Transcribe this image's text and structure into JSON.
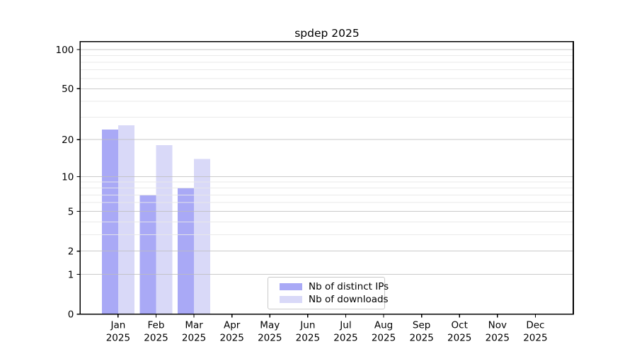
{
  "title": "spdep 2025",
  "chart_data": {
    "type": "bar",
    "title": "spdep 2025",
    "categories": [
      "Jan 2025",
      "Feb 2025",
      "Mar 2025",
      "Apr 2025",
      "May 2025",
      "Jun 2025",
      "Jul 2025",
      "Aug 2025",
      "Sep 2025",
      "Oct 2025",
      "Nov 2025",
      "Dec 2025"
    ],
    "series": [
      {
        "name": "Nb of distinct IPs",
        "color": "#a9a9f6",
        "values": [
          24,
          7,
          8,
          0,
          0,
          0,
          0,
          0,
          0,
          0,
          0,
          0
        ]
      },
      {
        "name": "Nb of downloads",
        "color": "#d9d9f8",
        "values": [
          26,
          18,
          14,
          0,
          0,
          0,
          0,
          0,
          0,
          0,
          0,
          0
        ]
      }
    ],
    "yscale": "log1p",
    "ylim": [
      0,
      115
    ],
    "y_major_ticks": [
      0,
      1,
      2,
      5,
      10,
      20,
      50,
      100
    ],
    "y_minor_gridlines": [
      3,
      4,
      6,
      7,
      8,
      9,
      30,
      40,
      60,
      70,
      80,
      90
    ],
    "grid": "on",
    "legend_position": "lower center",
    "colors": {
      "bar_distinct_ips": "#a9a9f6",
      "bar_downloads": "#d9d9f8",
      "major_grid": "#bdbdbd",
      "minor_grid": "#e8e8e8",
      "axis": "#000000",
      "background": "#ffffff"
    }
  }
}
